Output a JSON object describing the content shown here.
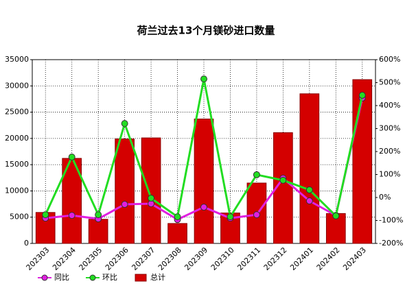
{
  "chart_data": {
    "type": "bar-line",
    "title": "荷兰过去13个月镁砂进口数量",
    "categories": [
      "202303",
      "202304",
      "202305",
      "202306",
      "202307",
      "202308",
      "202309",
      "202310",
      "202311",
      "202312",
      "202401",
      "202402",
      "202403"
    ],
    "series": [
      {
        "name": "总计",
        "type": "bar",
        "color": "#d40000",
        "values": [
          5900,
          16200,
          4600,
          19900,
          20100,
          3800,
          23700,
          5800,
          11500,
          21100,
          28500,
          5700,
          31200
        ]
      },
      {
        "name": "同比",
        "type": "line",
        "axis": "y2",
        "color": "#e020e0",
        "values": [
          -90,
          -78,
          -93,
          -30,
          -27,
          -96,
          -42,
          -90,
          -75,
          84,
          -15,
          -78,
          433
        ]
      },
      {
        "name": "环比",
        "type": "line",
        "axis": "y2",
        "color": "#22dd22",
        "values": [
          -75,
          176,
          -75,
          322,
          -3,
          -84,
          516,
          -84,
          99,
          75,
          33,
          -80,
          445
        ]
      }
    ],
    "ylim": [
      0,
      35000
    ],
    "yticks": [
      0,
      5000,
      10000,
      15000,
      20000,
      25000,
      30000,
      35000
    ],
    "y2lim": [
      -200,
      600
    ],
    "y2ticks": [
      {
        "value": -200,
        "label": "-200%"
      },
      {
        "value": -100,
        "label": "-100%"
      },
      {
        "value": 0,
        "label": "0%"
      },
      {
        "value": 100,
        "label": "100%"
      },
      {
        "value": 200,
        "label": "200%"
      },
      {
        "value": 300,
        "label": "300%"
      },
      {
        "value": 400,
        "label": "400%"
      },
      {
        "value": 500,
        "label": "500%"
      },
      {
        "value": 600,
        "label": "600%"
      }
    ],
    "grid": true
  }
}
